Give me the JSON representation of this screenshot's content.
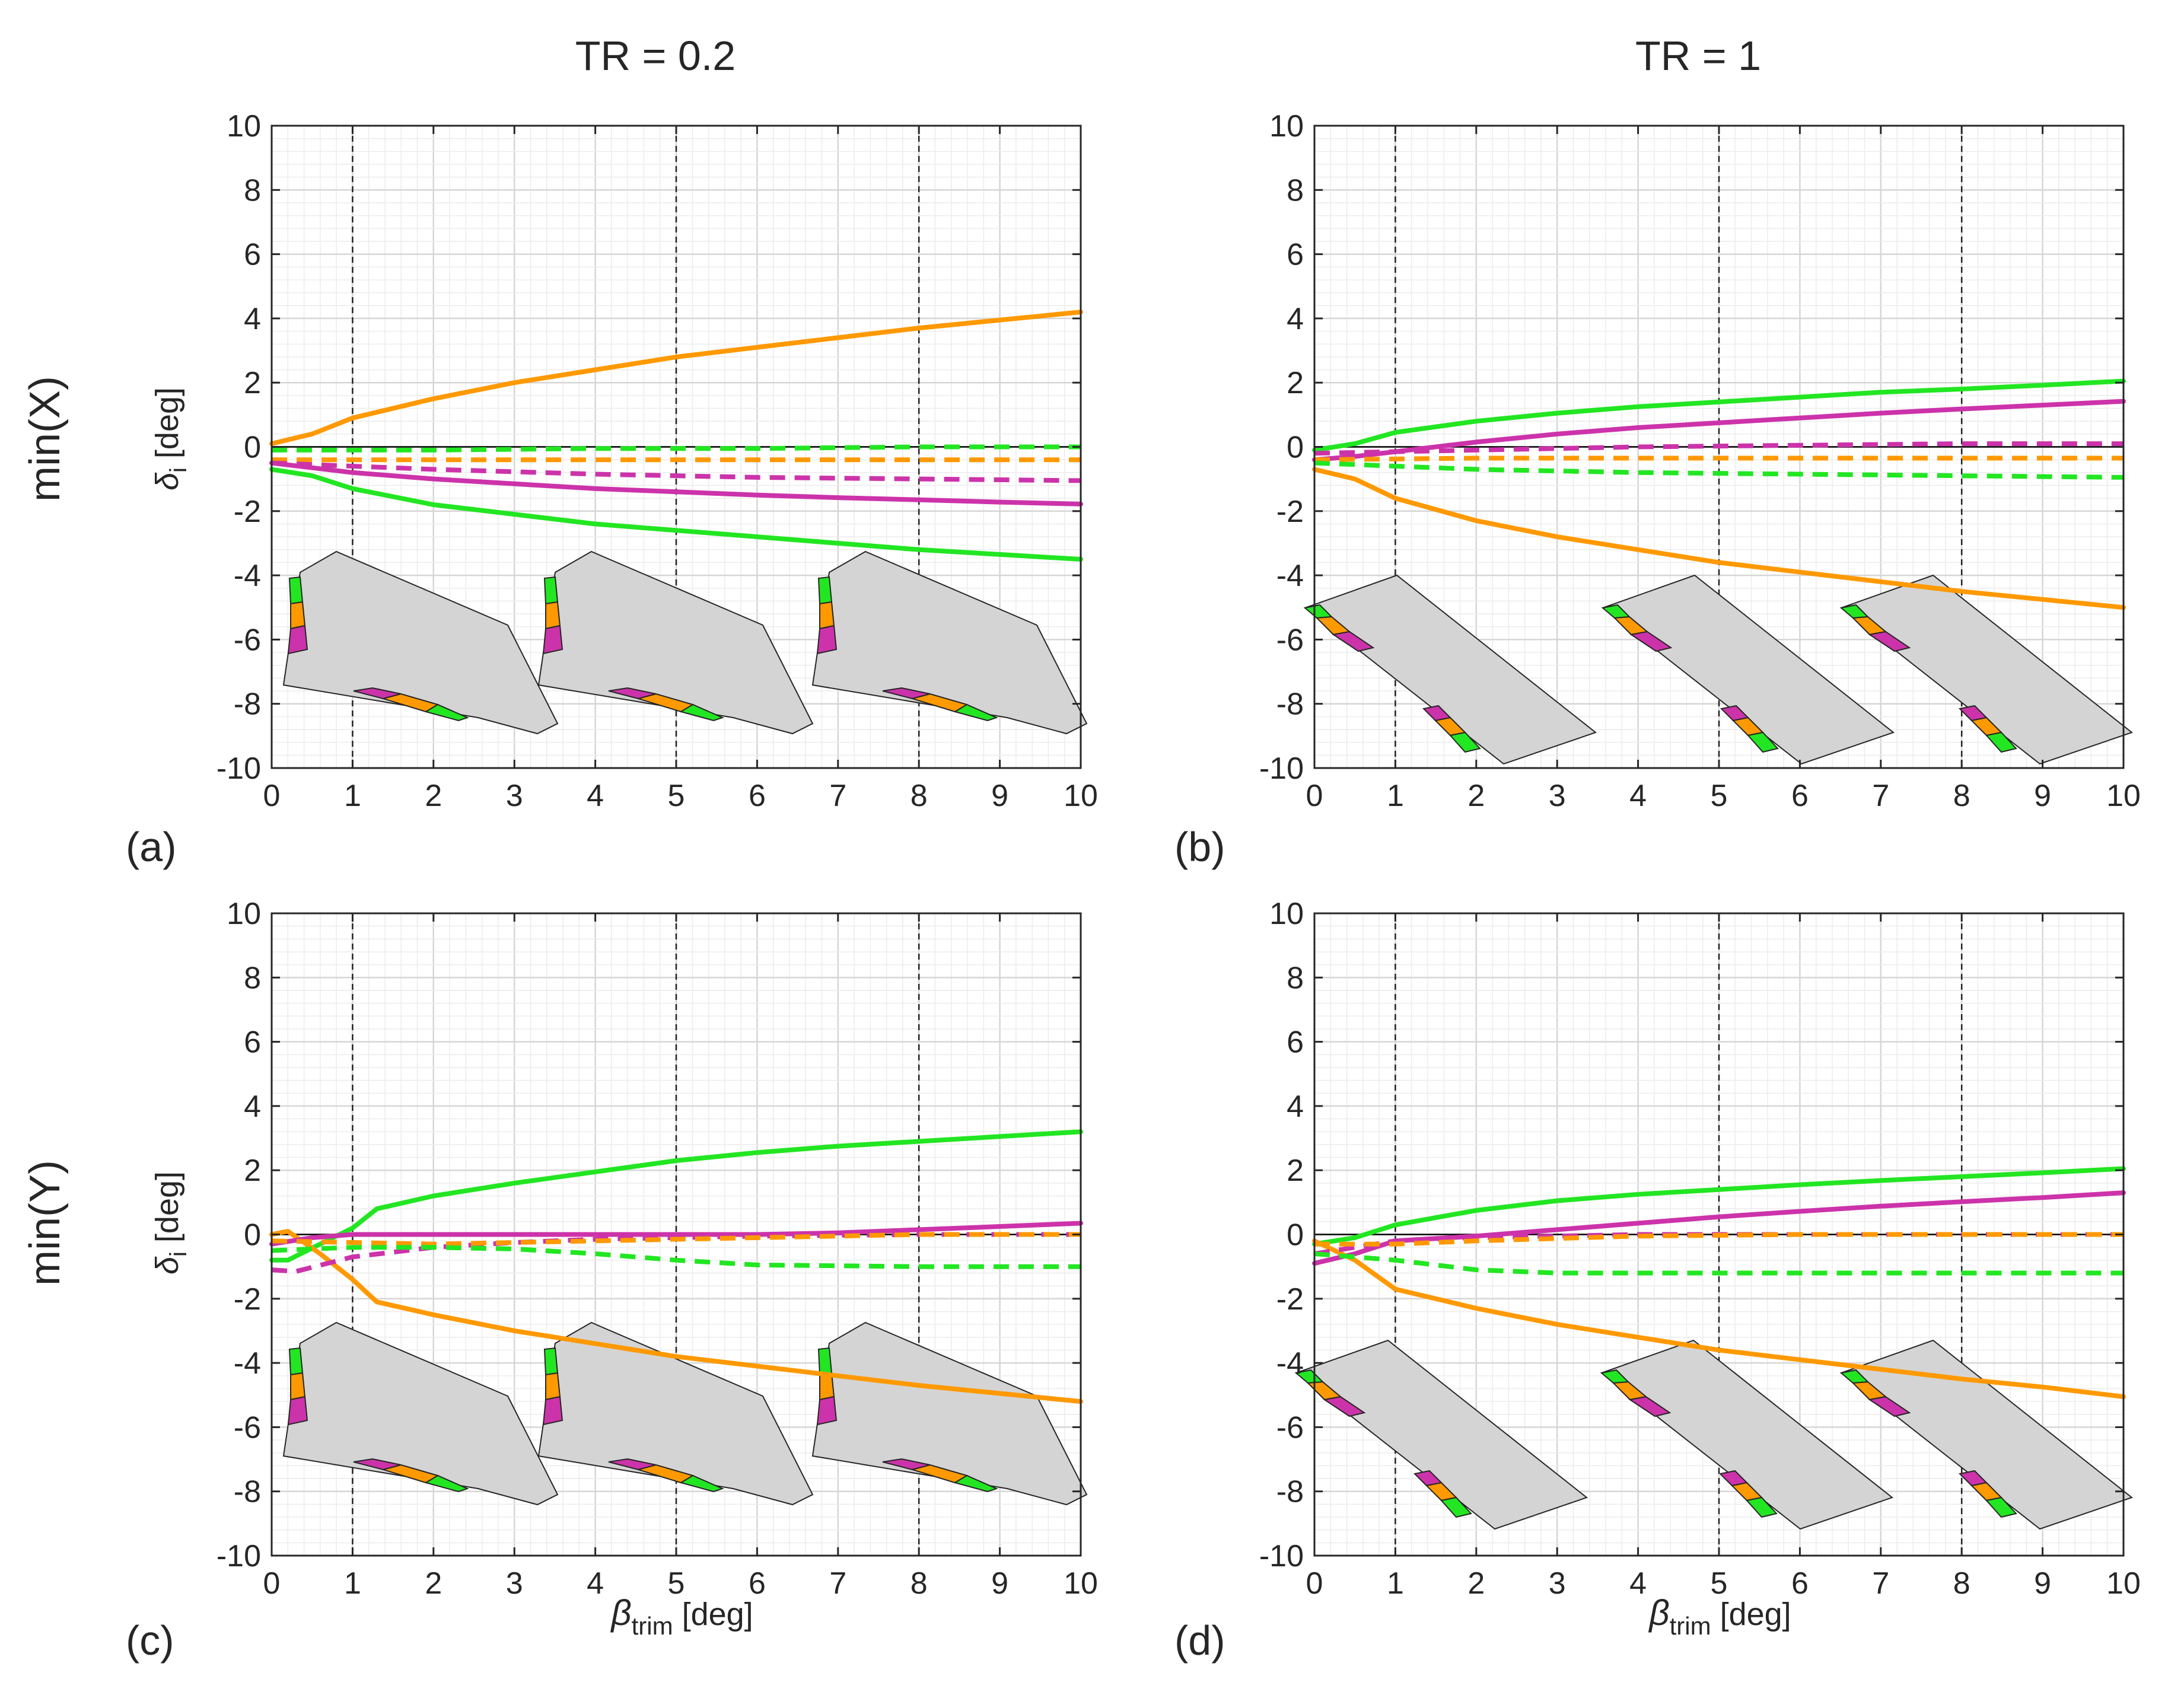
{
  "figure": {
    "column_titles": [
      "TR = 0.2",
      "TR = 1"
    ],
    "row_labels": [
      "min(X)",
      "min(Y)"
    ],
    "ylabel_main": "δ",
    "ylabel_sub": "i",
    "ylabel_unit": " [deg]",
    "xlabel_main": "β",
    "xlabel_sub": "trim",
    "xlabel_unit": " [deg]",
    "panel_labels": [
      "(a)",
      "(b)",
      "(c)",
      "(d)"
    ],
    "colors": {
      "green": "#22e622",
      "orange": "#ff9900",
      "magenta": "#cc33aa",
      "wing_fill": "#d4d4d4",
      "axes": "#262626",
      "grid_major": "#d6d6d6",
      "grid_minor": "#ececec"
    },
    "x_ticks": [
      "0",
      "1",
      "2",
      "3",
      "4",
      "5",
      "6",
      "7",
      "8",
      "9",
      "10"
    ],
    "y_ticks": [
      "10",
      "8",
      "6",
      "4",
      "2",
      "0",
      "-2",
      "-4",
      "-6",
      "-8",
      "-10"
    ]
  },
  "chart_data": [
    {
      "type": "line",
      "panel": "(a)",
      "title": "TR = 0.2",
      "row": "min(X)",
      "xlim": [
        0,
        10
      ],
      "ylim": [
        -10,
        10
      ],
      "vlines": [
        1,
        5,
        8
      ],
      "series": [
        {
          "name": "orange solid",
          "color": "orange",
          "style": "solid",
          "x": [
            0,
            0.5,
            1,
            2,
            3,
            4,
            5,
            6,
            7,
            8,
            9,
            10
          ],
          "y": [
            0.1,
            0.4,
            0.9,
            1.5,
            2.0,
            2.4,
            2.8,
            3.1,
            3.4,
            3.7,
            3.95,
            4.2
          ]
        },
        {
          "name": "green solid",
          "color": "green",
          "style": "solid",
          "x": [
            0,
            0.5,
            1,
            2,
            3,
            4,
            5,
            6,
            7,
            8,
            9,
            10
          ],
          "y": [
            -0.7,
            -0.9,
            -1.3,
            -1.8,
            -2.1,
            -2.4,
            -2.6,
            -2.8,
            -3.0,
            -3.2,
            -3.35,
            -3.5
          ]
        },
        {
          "name": "magenta solid",
          "color": "magenta",
          "style": "solid",
          "x": [
            0,
            0.5,
            1,
            2,
            3,
            4,
            5,
            6,
            7,
            8,
            9,
            10
          ],
          "y": [
            -0.5,
            -0.65,
            -0.8,
            -1.0,
            -1.15,
            -1.3,
            -1.4,
            -1.5,
            -1.58,
            -1.65,
            -1.72,
            -1.78
          ]
        },
        {
          "name": "green dashed",
          "color": "green",
          "style": "dashed",
          "x": [
            0,
            2,
            4,
            6,
            8,
            10
          ],
          "y": [
            -0.1,
            -0.1,
            -0.05,
            -0.05,
            0.0,
            0.0
          ]
        },
        {
          "name": "orange dashed",
          "color": "orange",
          "style": "dashed",
          "x": [
            0,
            2,
            4,
            6,
            8,
            10
          ],
          "y": [
            -0.4,
            -0.4,
            -0.4,
            -0.4,
            -0.4,
            -0.4
          ]
        },
        {
          "name": "magenta dashed",
          "color": "magenta",
          "style": "dashed",
          "x": [
            0,
            2,
            4,
            6,
            8,
            10
          ],
          "y": [
            -0.5,
            -0.7,
            -0.85,
            -0.95,
            -1.0,
            -1.05
          ]
        }
      ]
    },
    {
      "type": "line",
      "panel": "(b)",
      "title": "TR = 1",
      "row": "min(X)",
      "xlim": [
        0,
        10
      ],
      "ylim": [
        -10,
        10
      ],
      "vlines": [
        1,
        5,
        8
      ],
      "series": [
        {
          "name": "green solid",
          "color": "green",
          "style": "solid",
          "x": [
            0,
            0.5,
            1,
            2,
            3,
            4,
            5,
            6,
            7,
            8,
            9,
            10
          ],
          "y": [
            -0.1,
            0.1,
            0.45,
            0.8,
            1.05,
            1.25,
            1.4,
            1.55,
            1.7,
            1.8,
            1.92,
            2.05
          ]
        },
        {
          "name": "magenta solid",
          "color": "magenta",
          "style": "solid",
          "x": [
            0,
            0.5,
            1,
            2,
            3,
            4,
            5,
            6,
            7,
            8,
            9,
            10
          ],
          "y": [
            -0.4,
            -0.3,
            -0.15,
            0.15,
            0.4,
            0.6,
            0.75,
            0.9,
            1.05,
            1.18,
            1.3,
            1.42
          ]
        },
        {
          "name": "orange solid",
          "color": "orange",
          "style": "solid",
          "x": [
            0,
            0.5,
            1,
            2,
            3,
            4,
            5,
            6,
            7,
            8,
            9,
            10
          ],
          "y": [
            -0.7,
            -1.0,
            -1.6,
            -2.3,
            -2.8,
            -3.2,
            -3.6,
            -3.9,
            -4.2,
            -4.5,
            -4.75,
            -5.0
          ]
        },
        {
          "name": "magenta dashed",
          "color": "magenta",
          "style": "dashed",
          "x": [
            0,
            2,
            4,
            6,
            8,
            10
          ],
          "y": [
            -0.2,
            -0.1,
            0.0,
            0.05,
            0.1,
            0.1
          ]
        },
        {
          "name": "orange dashed",
          "color": "orange",
          "style": "dashed",
          "x": [
            0,
            2,
            4,
            6,
            8,
            10
          ],
          "y": [
            -0.4,
            -0.35,
            -0.35,
            -0.35,
            -0.35,
            -0.35
          ]
        },
        {
          "name": "green dashed",
          "color": "green",
          "style": "dashed",
          "x": [
            0,
            2,
            4,
            6,
            8,
            10
          ],
          "y": [
            -0.5,
            -0.7,
            -0.8,
            -0.85,
            -0.9,
            -0.95
          ]
        }
      ]
    },
    {
      "type": "line",
      "panel": "(c)",
      "title": "TR = 0.2",
      "row": "min(Y)",
      "xlim": [
        0,
        10
      ],
      "ylim": [
        -10,
        10
      ],
      "vlines": [
        1,
        5,
        8
      ],
      "series": [
        {
          "name": "green solid",
          "color": "green",
          "style": "solid",
          "x": [
            0,
            0.2,
            0.6,
            1,
            1.3,
            2,
            3,
            4,
            5,
            6,
            7,
            8,
            9,
            10
          ],
          "y": [
            -0.8,
            -0.8,
            -0.3,
            0.2,
            0.8,
            1.2,
            1.6,
            1.95,
            2.3,
            2.55,
            2.75,
            2.9,
            3.05,
            3.2
          ]
        },
        {
          "name": "orange solid",
          "color": "orange",
          "style": "solid",
          "x": [
            0,
            0.2,
            0.6,
            1,
            1.3,
            2,
            3,
            4,
            5,
            6,
            7,
            8,
            9,
            10
          ],
          "y": [
            0.0,
            0.1,
            -0.6,
            -1.4,
            -2.1,
            -2.5,
            -3.0,
            -3.4,
            -3.8,
            -4.1,
            -4.4,
            -4.7,
            -4.95,
            -5.2
          ]
        },
        {
          "name": "magenta solid",
          "color": "magenta",
          "style": "solid",
          "x": [
            0,
            0.5,
            1,
            2,
            4,
            6,
            7,
            8,
            9,
            10
          ],
          "y": [
            -0.3,
            -0.1,
            0.0,
            0.0,
            0.0,
            0.0,
            0.05,
            0.15,
            0.25,
            0.35
          ]
        },
        {
          "name": "magenta dashed",
          "color": "magenta",
          "style": "dashed",
          "x": [
            0,
            0.3,
            1,
            2,
            3,
            4,
            5,
            6,
            8,
            10
          ],
          "y": [
            -1.1,
            -1.15,
            -0.7,
            -0.4,
            -0.25,
            -0.15,
            -0.1,
            -0.05,
            0.0,
            0.0
          ]
        },
        {
          "name": "orange dashed",
          "color": "orange",
          "style": "dashed",
          "x": [
            0,
            1,
            2,
            4,
            6,
            8,
            10
          ],
          "y": [
            -0.2,
            -0.25,
            -0.3,
            -0.2,
            -0.1,
            0.0,
            0.0
          ]
        },
        {
          "name": "green dashed",
          "color": "green",
          "style": "dashed",
          "x": [
            0,
            1,
            2,
            3,
            4,
            5,
            6,
            8,
            10
          ],
          "y": [
            -0.5,
            -0.4,
            -0.4,
            -0.45,
            -0.6,
            -0.8,
            -0.95,
            -1.0,
            -1.0
          ]
        }
      ]
    },
    {
      "type": "line",
      "panel": "(d)",
      "title": "TR = 1",
      "row": "min(Y)",
      "xlim": [
        0,
        10
      ],
      "ylim": [
        -10,
        10
      ],
      "vlines": [
        1,
        5,
        8
      ],
      "series": [
        {
          "name": "green solid",
          "color": "green",
          "style": "solid",
          "x": [
            0,
            0.5,
            1,
            2,
            3,
            4,
            5,
            6,
            7,
            8,
            9,
            10
          ],
          "y": [
            -0.3,
            -0.1,
            0.3,
            0.75,
            1.05,
            1.25,
            1.4,
            1.55,
            1.68,
            1.8,
            1.92,
            2.05
          ]
        },
        {
          "name": "magenta solid",
          "color": "magenta",
          "style": "solid",
          "x": [
            0,
            0.5,
            1,
            2,
            3,
            4,
            5,
            6,
            7,
            8,
            9,
            10
          ],
          "y": [
            -0.9,
            -0.6,
            -0.2,
            -0.05,
            0.15,
            0.35,
            0.55,
            0.72,
            0.88,
            1.02,
            1.15,
            1.3
          ]
        },
        {
          "name": "orange solid",
          "color": "orange",
          "style": "solid",
          "x": [
            0,
            0.5,
            1,
            2,
            3,
            4,
            5,
            6,
            7,
            8,
            9,
            10
          ],
          "y": [
            -0.2,
            -0.8,
            -1.7,
            -2.3,
            -2.8,
            -3.2,
            -3.6,
            -3.9,
            -4.2,
            -4.5,
            -4.75,
            -5.05
          ]
        },
        {
          "name": "magenta dashed",
          "color": "magenta",
          "style": "dashed",
          "x": [
            0,
            1,
            2,
            4,
            6,
            8,
            10
          ],
          "y": [
            -0.6,
            -0.2,
            -0.1,
            0.0,
            0.0,
            0.0,
            0.0
          ]
        },
        {
          "name": "orange dashed",
          "color": "orange",
          "style": "dashed",
          "x": [
            0,
            1,
            1.5,
            2,
            4,
            6,
            8,
            10
          ],
          "y": [
            -0.3,
            -0.3,
            -0.25,
            -0.2,
            -0.05,
            0.0,
            0.0,
            0.0
          ]
        },
        {
          "name": "green dashed",
          "color": "green",
          "style": "dashed",
          "x": [
            0,
            1,
            2,
            3,
            4,
            6,
            8,
            10
          ],
          "y": [
            -0.6,
            -0.8,
            -1.1,
            -1.2,
            -1.2,
            -1.2,
            -1.2,
            -1.2
          ]
        }
      ]
    }
  ]
}
